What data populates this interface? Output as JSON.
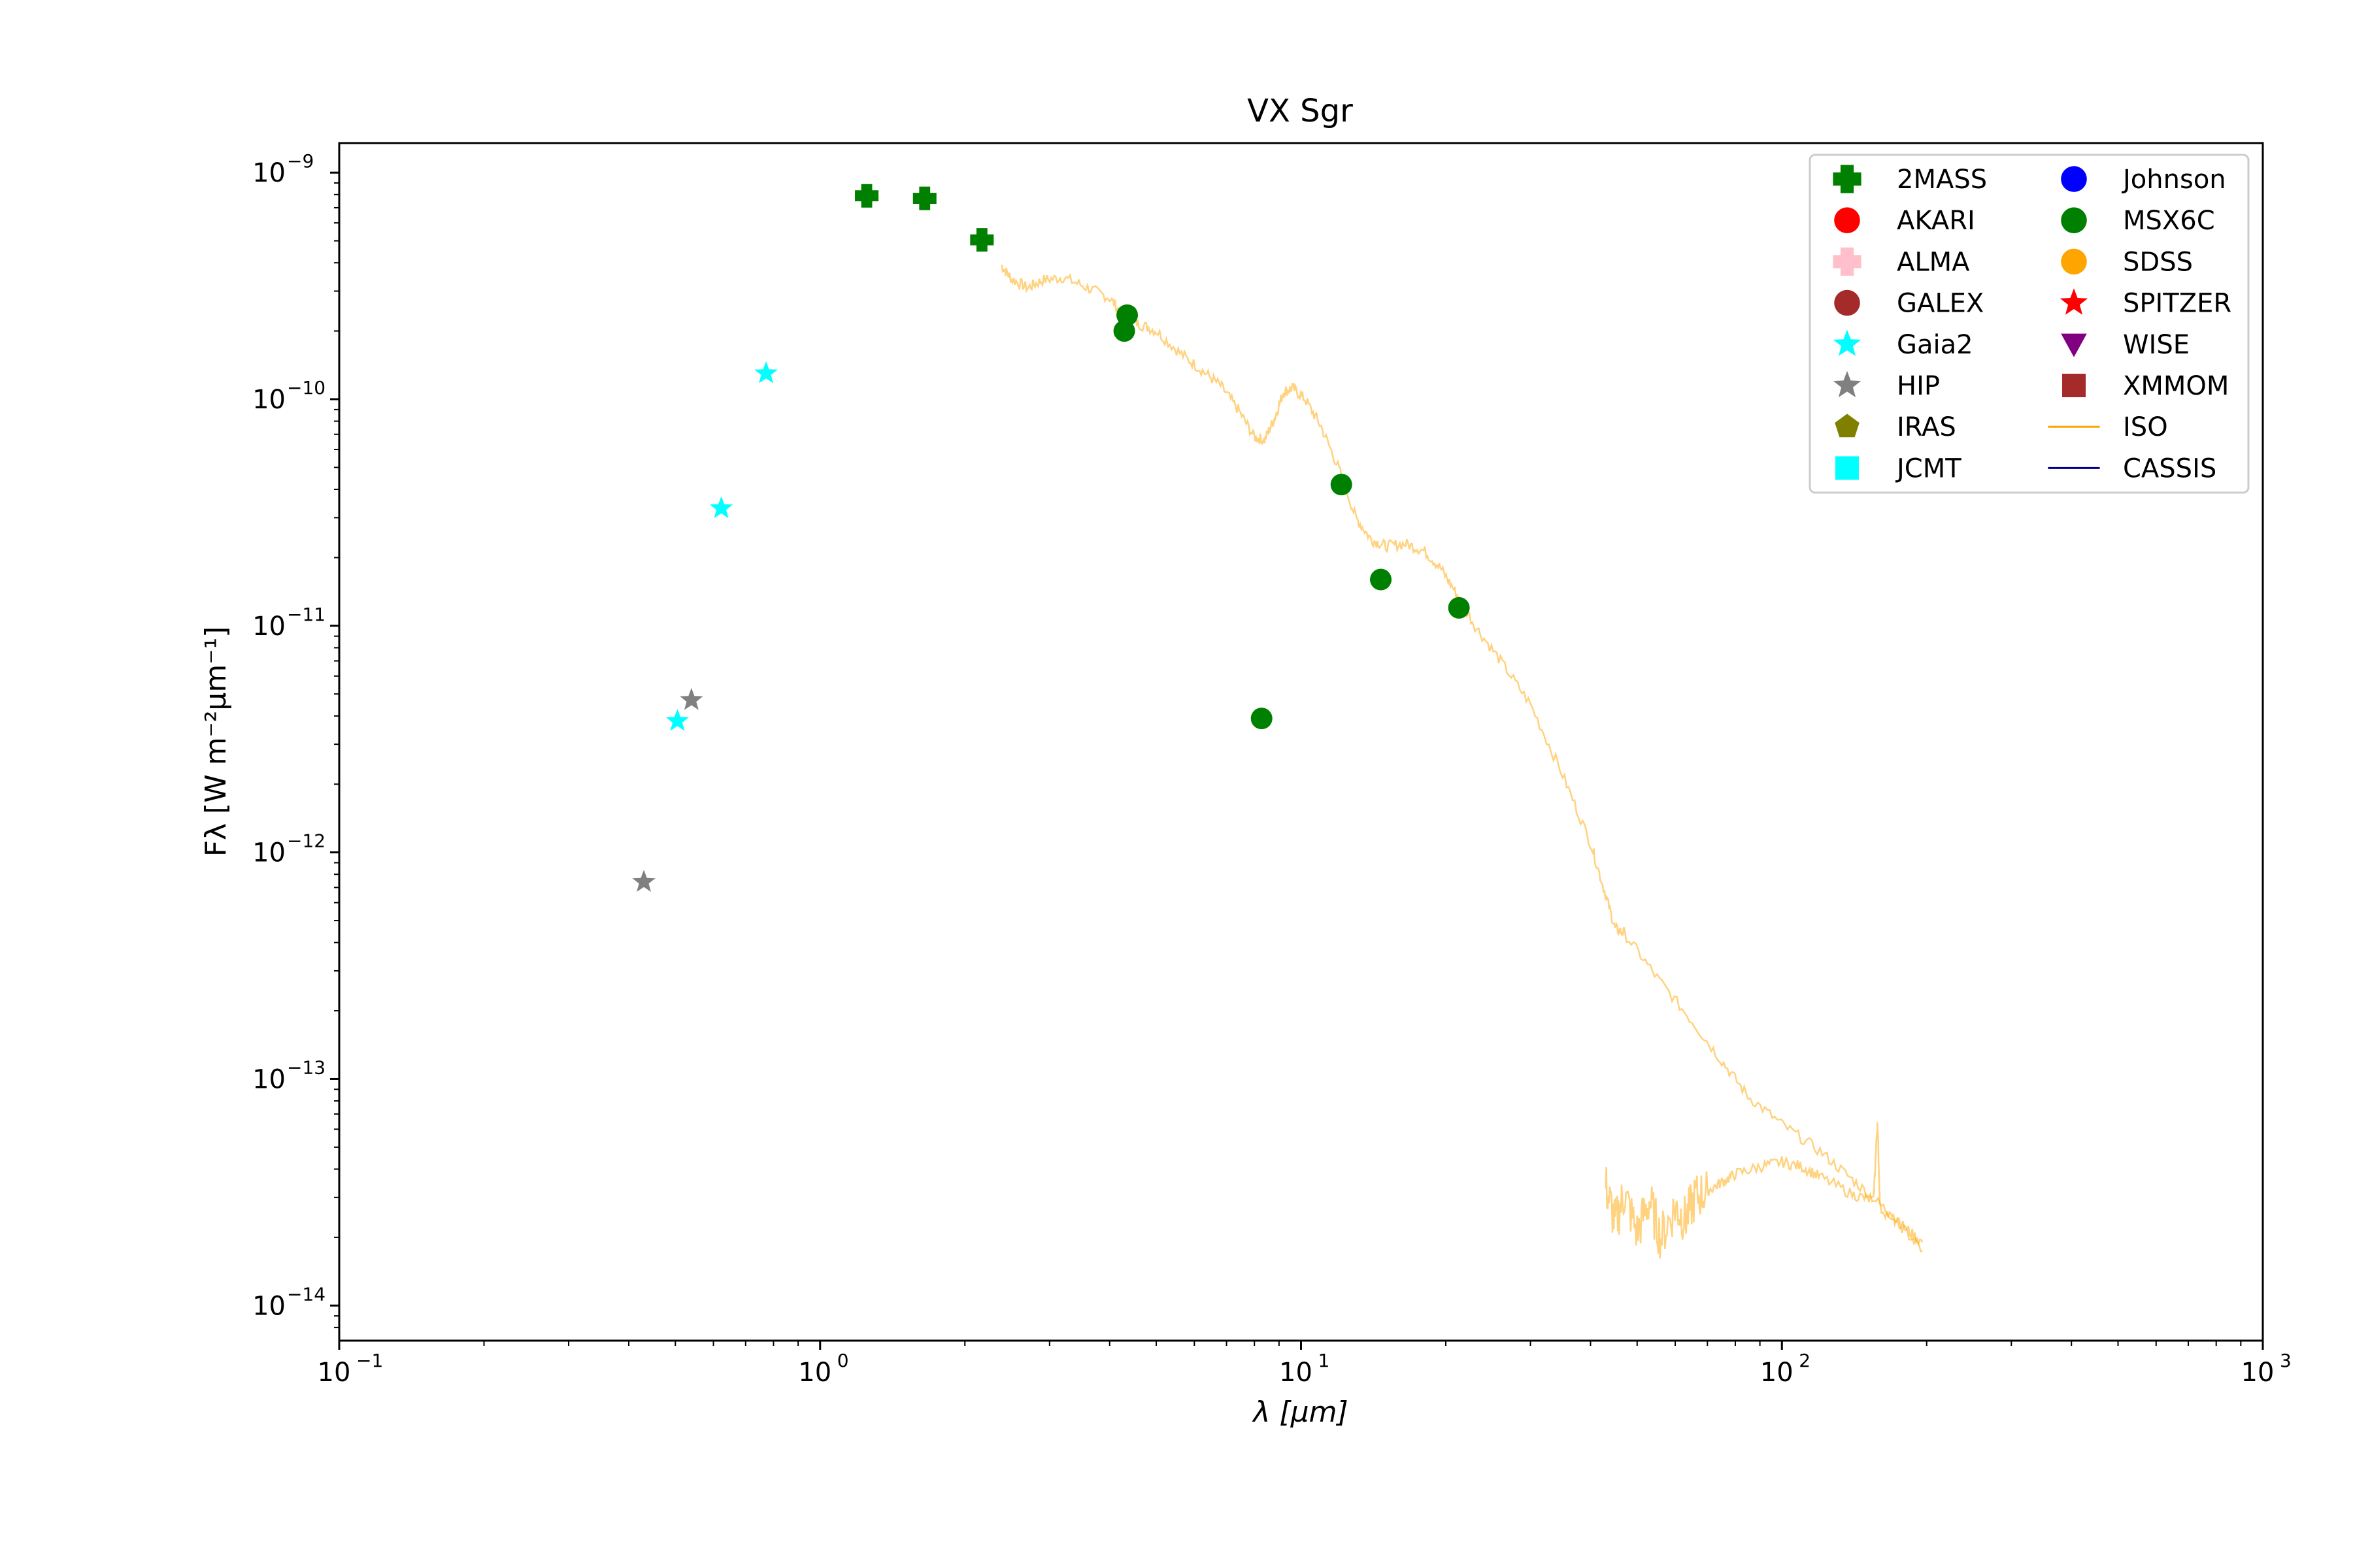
{
  "chart_data": {
    "type": "scatter",
    "title": "VX Sgr",
    "xlabel": "λ [μm]",
    "ylabel": "Fλ [W m⁻²μm⁻¹]",
    "x_scale": "log",
    "y_scale": "log",
    "xlim": [
      0.1,
      1000
    ],
    "ylim": [
      7e-15,
      1.35e-09
    ],
    "grid": false,
    "legend_position": "top-right",
    "x_ticks": [
      {
        "value": 0.1,
        "base": "10",
        "exp": "−1"
      },
      {
        "value": 1,
        "base": "10",
        "exp": "0"
      },
      {
        "value": 10,
        "base": "10",
        "exp": "1"
      },
      {
        "value": 100,
        "base": "10",
        "exp": "2"
      },
      {
        "value": 1000,
        "base": "10",
        "exp": "3"
      }
    ],
    "y_ticks": [
      {
        "value": 1e-14,
        "base": "10",
        "exp": "−14"
      },
      {
        "value": 1e-13,
        "base": "10",
        "exp": "−13"
      },
      {
        "value": 1e-12,
        "base": "10",
        "exp": "−12"
      },
      {
        "value": 1e-11,
        "base": "10",
        "exp": "−11"
      },
      {
        "value": 1e-10,
        "base": "10",
        "exp": "−10"
      },
      {
        "value": 1e-09,
        "base": "10",
        "exp": "−9"
      }
    ],
    "legend": [
      {
        "name": "2MASS",
        "color": "#008000",
        "marker": "plus"
      },
      {
        "name": "AKARI",
        "color": "#ff0000",
        "marker": "circle"
      },
      {
        "name": "ALMA",
        "color": "#ffc0cb",
        "marker": "plus"
      },
      {
        "name": "GALEX",
        "color": "#a52a2a",
        "marker": "circle"
      },
      {
        "name": "Gaia2",
        "color": "#00ffff",
        "marker": "star"
      },
      {
        "name": "HIP",
        "color": "#808080",
        "marker": "star"
      },
      {
        "name": "IRAS",
        "color": "#808000",
        "marker": "pentagon"
      },
      {
        "name": "JCMT",
        "color": "#00ffff",
        "marker": "square"
      },
      {
        "name": "Johnson",
        "color": "#0000ff",
        "marker": "circle"
      },
      {
        "name": "MSX6C",
        "color": "#008000",
        "marker": "circle"
      },
      {
        "name": "SDSS",
        "color": "#ffa500",
        "marker": "circle"
      },
      {
        "name": "SPITZER",
        "color": "#ff0000",
        "marker": "star"
      },
      {
        "name": "WISE",
        "color": "#800080",
        "marker": "triangle-down"
      },
      {
        "name": "XMMOM",
        "color": "#a52a2a",
        "marker": "square"
      },
      {
        "name": "ISO",
        "color": "#ffa500",
        "marker": "line"
      },
      {
        "name": "CASSIS",
        "color": "#00008b",
        "marker": "line"
      }
    ],
    "series": [
      {
        "name": "2MASS",
        "color": "#008000",
        "marker": "plus",
        "points": [
          [
            1.25,
            7.9e-10
          ],
          [
            1.65,
            7.7e-10
          ],
          [
            2.17,
            5.05e-10
          ]
        ]
      },
      {
        "name": "Gaia2",
        "color": "#00ffff",
        "marker": "star",
        "points": [
          [
            0.505,
            3.8e-12
          ],
          [
            0.623,
            3.3e-11
          ],
          [
            0.772,
            1.3e-10
          ]
        ]
      },
      {
        "name": "HIP",
        "color": "#808080",
        "marker": "star",
        "points": [
          [
            0.43,
            7.4e-13
          ],
          [
            0.54,
            4.7e-12
          ]
        ]
      },
      {
        "name": "MSX6C",
        "color": "#008000",
        "marker": "circle",
        "points": [
          [
            4.29,
            2e-10
          ],
          [
            4.35,
            2.35e-10
          ],
          [
            8.28,
            3.9e-12
          ],
          [
            12.13,
            4.2e-11
          ],
          [
            14.65,
            1.6e-11
          ],
          [
            21.3,
            1.2e-11
          ]
        ]
      }
    ],
    "iso_spectrum": {
      "name": "ISO",
      "color": "#ffa500",
      "opacity": 0.5,
      "segments": [
        [
          [
            2.38,
            3.9e-10
          ],
          [
            2.5,
            3.4e-10
          ],
          [
            2.7,
            3.1e-10
          ],
          [
            2.9,
            3.35e-10
          ],
          [
            3.2,
            3.45e-10
          ],
          [
            3.6,
            3.1e-10
          ],
          [
            4.0,
            2.8e-10
          ],
          [
            4.3,
            2.3e-10
          ],
          [
            4.6,
            2.15e-10
          ],
          [
            5.0,
            2e-10
          ],
          [
            5.6,
            1.6e-10
          ],
          [
            6.2,
            1.35e-10
          ],
          [
            6.8,
            1.15e-10
          ],
          [
            7.4,
            9e-11
          ],
          [
            8.0,
            6.8e-11
          ],
          [
            8.4,
            6.6e-11
          ],
          [
            8.8,
            8.2e-11
          ],
          [
            9.2,
            1.08e-10
          ],
          [
            9.6,
            1.12e-10
          ],
          [
            10.2,
            1e-10
          ],
          [
            11.0,
            7.6e-11
          ],
          [
            12.0,
            4.9e-11
          ],
          [
            13.0,
            3e-11
          ],
          [
            14.0,
            2.4e-11
          ],
          [
            15.0,
            2.25e-11
          ],
          [
            16.5,
            2.3e-11
          ],
          [
            18.0,
            2.15e-11
          ],
          [
            19.5,
            1.8e-11
          ],
          [
            21.0,
            1.4e-11
          ],
          [
            23.0,
            1e-11
          ],
          [
            26.0,
            7e-12
          ],
          [
            30.0,
            4.5e-12
          ],
          [
            35.0,
            2.2e-12
          ],
          [
            40.0,
            1.1e-12
          ],
          [
            43.0,
            6.5e-13
          ],
          [
            45.0,
            4.6e-13
          ],
          [
            47.0,
            4.4e-13
          ],
          [
            55.0,
            2.8e-13
          ],
          [
            65.0,
            1.8e-13
          ],
          [
            75.0,
            1.2e-13
          ],
          [
            85.0,
            8.4e-14
          ],
          [
            100.0,
            6.3e-14
          ],
          [
            120.0,
            4.8e-14
          ],
          [
            140.0,
            3.6e-14
          ],
          [
            160.0,
            2.8e-14
          ],
          [
            180.0,
            2.2e-14
          ],
          [
            196.0,
            1.9e-14
          ]
        ],
        [
          [
            43.0,
            3.4e-14
          ],
          [
            45.0,
            2.3e-14
          ],
          [
            47.0,
            3.1e-14
          ],
          [
            50.0,
            2.1e-14
          ],
          [
            53.0,
            2.9e-14
          ],
          [
            56.0,
            2e-14
          ],
          [
            60.0,
            2.7e-14
          ],
          [
            63.0,
            2.4e-14
          ],
          [
            66.0,
            3e-14
          ],
          [
            70.0,
            3.2e-14
          ],
          [
            75.0,
            3.5e-14
          ],
          [
            80.0,
            3.8e-14
          ],
          [
            90.0,
            4.1e-14
          ],
          [
            100.0,
            4.3e-14
          ],
          [
            110.0,
            4.1e-14
          ],
          [
            120.0,
            3.7e-14
          ],
          [
            140.0,
            3.1e-14
          ],
          [
            155.0,
            2.9e-14
          ],
          [
            158.0,
            6.5e-14
          ],
          [
            160.0,
            2.7e-14
          ],
          [
            175.0,
            2.3e-14
          ],
          [
            196.0,
            1.75e-14
          ]
        ]
      ]
    }
  }
}
